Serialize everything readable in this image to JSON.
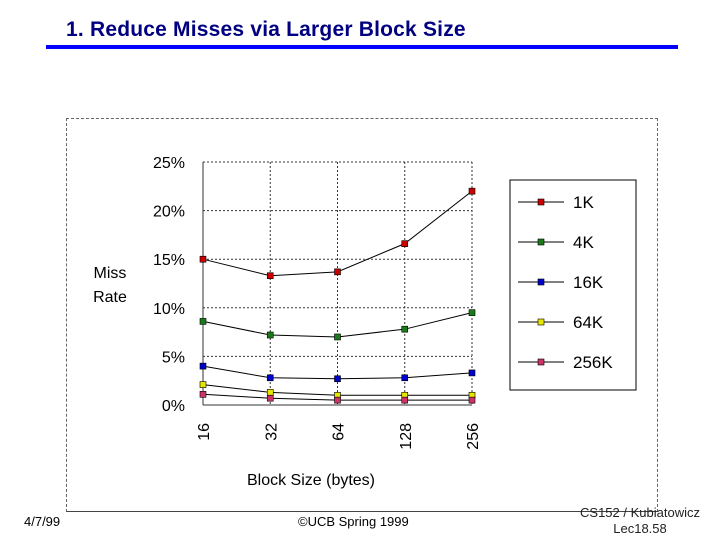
{
  "slide": {
    "title": "1. Reduce Misses via Larger Block Size",
    "footer_date": "4/7/99",
    "footer_copyright": "©UCB Spring 1999",
    "footer_course_line1": "CS152 / Kubiatowicz",
    "footer_course_line2": "Lec18.58"
  },
  "colors": {
    "title": "#000080",
    "rule": "#0000ff"
  },
  "chart_data": {
    "type": "line",
    "xlabel": "Block Size (bytes)",
    "ylabel_line1": "Miss",
    "ylabel_line2": "Rate",
    "categories": [
      "16",
      "32",
      "64",
      "128",
      "256"
    ],
    "y_ticks": [
      "0%",
      "5%",
      "10%",
      "15%",
      "20%",
      "25%"
    ],
    "ylim": [
      0,
      25
    ],
    "grid": true,
    "legend_position": "right",
    "series": [
      {
        "name": "1K",
        "color": "#cc0000",
        "values": [
          15.0,
          13.3,
          13.7,
          16.6,
          22.0
        ]
      },
      {
        "name": "4K",
        "color": "#1a7a1a",
        "values": [
          8.6,
          7.2,
          7.0,
          7.8,
          9.5
        ]
      },
      {
        "name": "16K",
        "color": "#0000cc",
        "values": [
          4.0,
          2.8,
          2.7,
          2.8,
          3.3
        ]
      },
      {
        "name": "64K",
        "color": "#e6e600",
        "values": [
          2.1,
          1.3,
          1.0,
          1.0,
          1.0
        ]
      },
      {
        "name": "256K",
        "color": "#cc3366",
        "values": [
          1.1,
          0.7,
          0.5,
          0.5,
          0.5
        ]
      }
    ]
  }
}
